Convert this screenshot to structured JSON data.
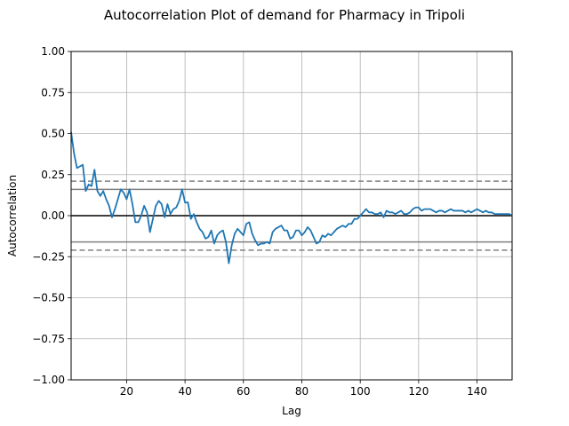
{
  "chart_data": {
    "type": "line",
    "title": "Autocorrelation Plot of demand for Pharmacy in Tripoli",
    "xlabel": "Lag",
    "ylabel": "Autocorrelation",
    "xlim": [
      1,
      152
    ],
    "ylim": [
      -1.0,
      1.0
    ],
    "x_ticks": [
      20,
      40,
      60,
      80,
      100,
      120,
      140
    ],
    "x_tick_labels": [
      "20",
      "40",
      "60",
      "80",
      "100",
      "120",
      "140"
    ],
    "y_ticks": [
      1.0,
      0.75,
      0.5,
      0.25,
      0.0,
      -0.25,
      -0.5,
      -0.75,
      -1.0
    ],
    "y_tick_labels": [
      "1.00",
      "0.75",
      "0.50",
      "0.25",
      "0.00",
      "−0.25",
      "−0.50",
      "−0.75",
      "−1.00"
    ],
    "grid": true,
    "reference_lines": [
      {
        "y": 0.0,
        "style": "solid",
        "color": "#000000"
      },
      {
        "y": 0.16,
        "style": "solid",
        "color": "#808080"
      },
      {
        "y": -0.16,
        "style": "solid",
        "color": "#808080"
      },
      {
        "y": 0.21,
        "style": "dashed",
        "color": "#808080"
      },
      {
        "y": -0.21,
        "style": "dashed",
        "color": "#808080"
      }
    ],
    "series": [
      {
        "color": "#1f77b4",
        "x": [
          1,
          2,
          3,
          4,
          5,
          6,
          7,
          8,
          9,
          10,
          11,
          12,
          13,
          14,
          15,
          16,
          17,
          18,
          19,
          20,
          21,
          22,
          23,
          24,
          25,
          26,
          27,
          28,
          29,
          30,
          31,
          32,
          33,
          34,
          35,
          36,
          37,
          38,
          39,
          40,
          41,
          42,
          43,
          44,
          45,
          46,
          47,
          48,
          49,
          50,
          51,
          52,
          53,
          54,
          55,
          56,
          57,
          58,
          59,
          60,
          61,
          62,
          63,
          64,
          65,
          66,
          67,
          68,
          69,
          70,
          71,
          72,
          73,
          74,
          75,
          76,
          77,
          78,
          79,
          80,
          81,
          82,
          83,
          84,
          85,
          86,
          87,
          88,
          89,
          90,
          91,
          92,
          93,
          94,
          95,
          96,
          97,
          98,
          99,
          100,
          101,
          102,
          103,
          104,
          105,
          106,
          107,
          108,
          109,
          110,
          111,
          112,
          113,
          114,
          115,
          116,
          117,
          118,
          119,
          120,
          121,
          122,
          123,
          124,
          125,
          126,
          127,
          128,
          129,
          130,
          131,
          132,
          133,
          134,
          135,
          136,
          137,
          138,
          139,
          140,
          141,
          142,
          143,
          144,
          145,
          146,
          147,
          148,
          149,
          150,
          151,
          152
        ],
        "y": [
          0.51,
          0.38,
          0.29,
          0.3,
          0.31,
          0.15,
          0.19,
          0.18,
          0.28,
          0.15,
          0.12,
          0.15,
          0.1,
          0.06,
          -0.01,
          0.04,
          0.1,
          0.16,
          0.14,
          0.1,
          0.16,
          0.07,
          -0.04,
          -0.04,
          0.0,
          0.06,
          0.02,
          -0.1,
          -0.02,
          0.06,
          0.09,
          0.07,
          -0.01,
          0.07,
          0.01,
          0.04,
          0.05,
          0.09,
          0.16,
          0.08,
          0.08,
          -0.02,
          0.01,
          -0.04,
          -0.08,
          -0.1,
          -0.14,
          -0.13,
          -0.09,
          -0.17,
          -0.12,
          -0.1,
          -0.09,
          -0.16,
          -0.29,
          -0.18,
          -0.11,
          -0.08,
          -0.1,
          -0.12,
          -0.05,
          -0.04,
          -0.11,
          -0.15,
          -0.18,
          -0.17,
          -0.17,
          -0.16,
          -0.17,
          -0.1,
          -0.08,
          -0.07,
          -0.06,
          -0.09,
          -0.09,
          -0.14,
          -0.13,
          -0.09,
          -0.09,
          -0.12,
          -0.1,
          -0.07,
          -0.09,
          -0.13,
          -0.17,
          -0.16,
          -0.12,
          -0.13,
          -0.11,
          -0.12,
          -0.1,
          -0.08,
          -0.07,
          -0.06,
          -0.07,
          -0.05,
          -0.05,
          -0.02,
          -0.02,
          0.0,
          0.02,
          0.04,
          0.02,
          0.02,
          0.01,
          0.01,
          0.02,
          -0.01,
          0.03,
          0.02,
          0.02,
          0.01,
          0.02,
          0.03,
          0.01,
          0.01,
          0.02,
          0.04,
          0.05,
          0.05,
          0.03,
          0.04,
          0.04,
          0.04,
          0.03,
          0.02,
          0.03,
          0.03,
          0.02,
          0.03,
          0.04,
          0.03,
          0.03,
          0.03,
          0.03,
          0.02,
          0.03,
          0.02,
          0.03,
          0.04,
          0.03,
          0.02,
          0.03,
          0.02,
          0.02,
          0.01,
          0.01,
          0.01,
          0.01,
          0.01,
          0.01,
          0.0
        ]
      }
    ]
  }
}
